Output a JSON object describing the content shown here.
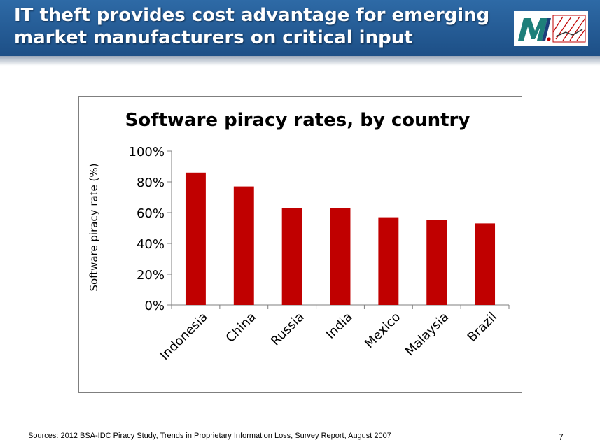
{
  "slide": {
    "title": "IT theft provides cost advantage for emerging market manufacturers on critical input",
    "sources": "Sources: 2012 BSA-IDC Piracy Study, Trends in Proprietary Information Loss, Survey Report, August 2007",
    "page_number": "7",
    "logo_icon": "m-logo-icon",
    "colors": {
      "header": "#1f5a94",
      "bar": "#c00000"
    }
  },
  "chart_data": {
    "type": "bar",
    "title": "Software piracy rates, by country",
    "ylabel": "Software piracy rate (%)",
    "xlabel": "",
    "categories": [
      "Indonesia",
      "China",
      "Russia",
      "India",
      "Mexico",
      "Malaysia",
      "Brazil"
    ],
    "values": [
      86,
      77,
      63,
      63,
      57,
      55,
      53
    ],
    "ylim": [
      0,
      100
    ],
    "yticks": [
      "0%",
      "20%",
      "40%",
      "60%",
      "80%",
      "100%"
    ],
    "grid": false,
    "legend": "none",
    "bar_color": "#c00000"
  }
}
